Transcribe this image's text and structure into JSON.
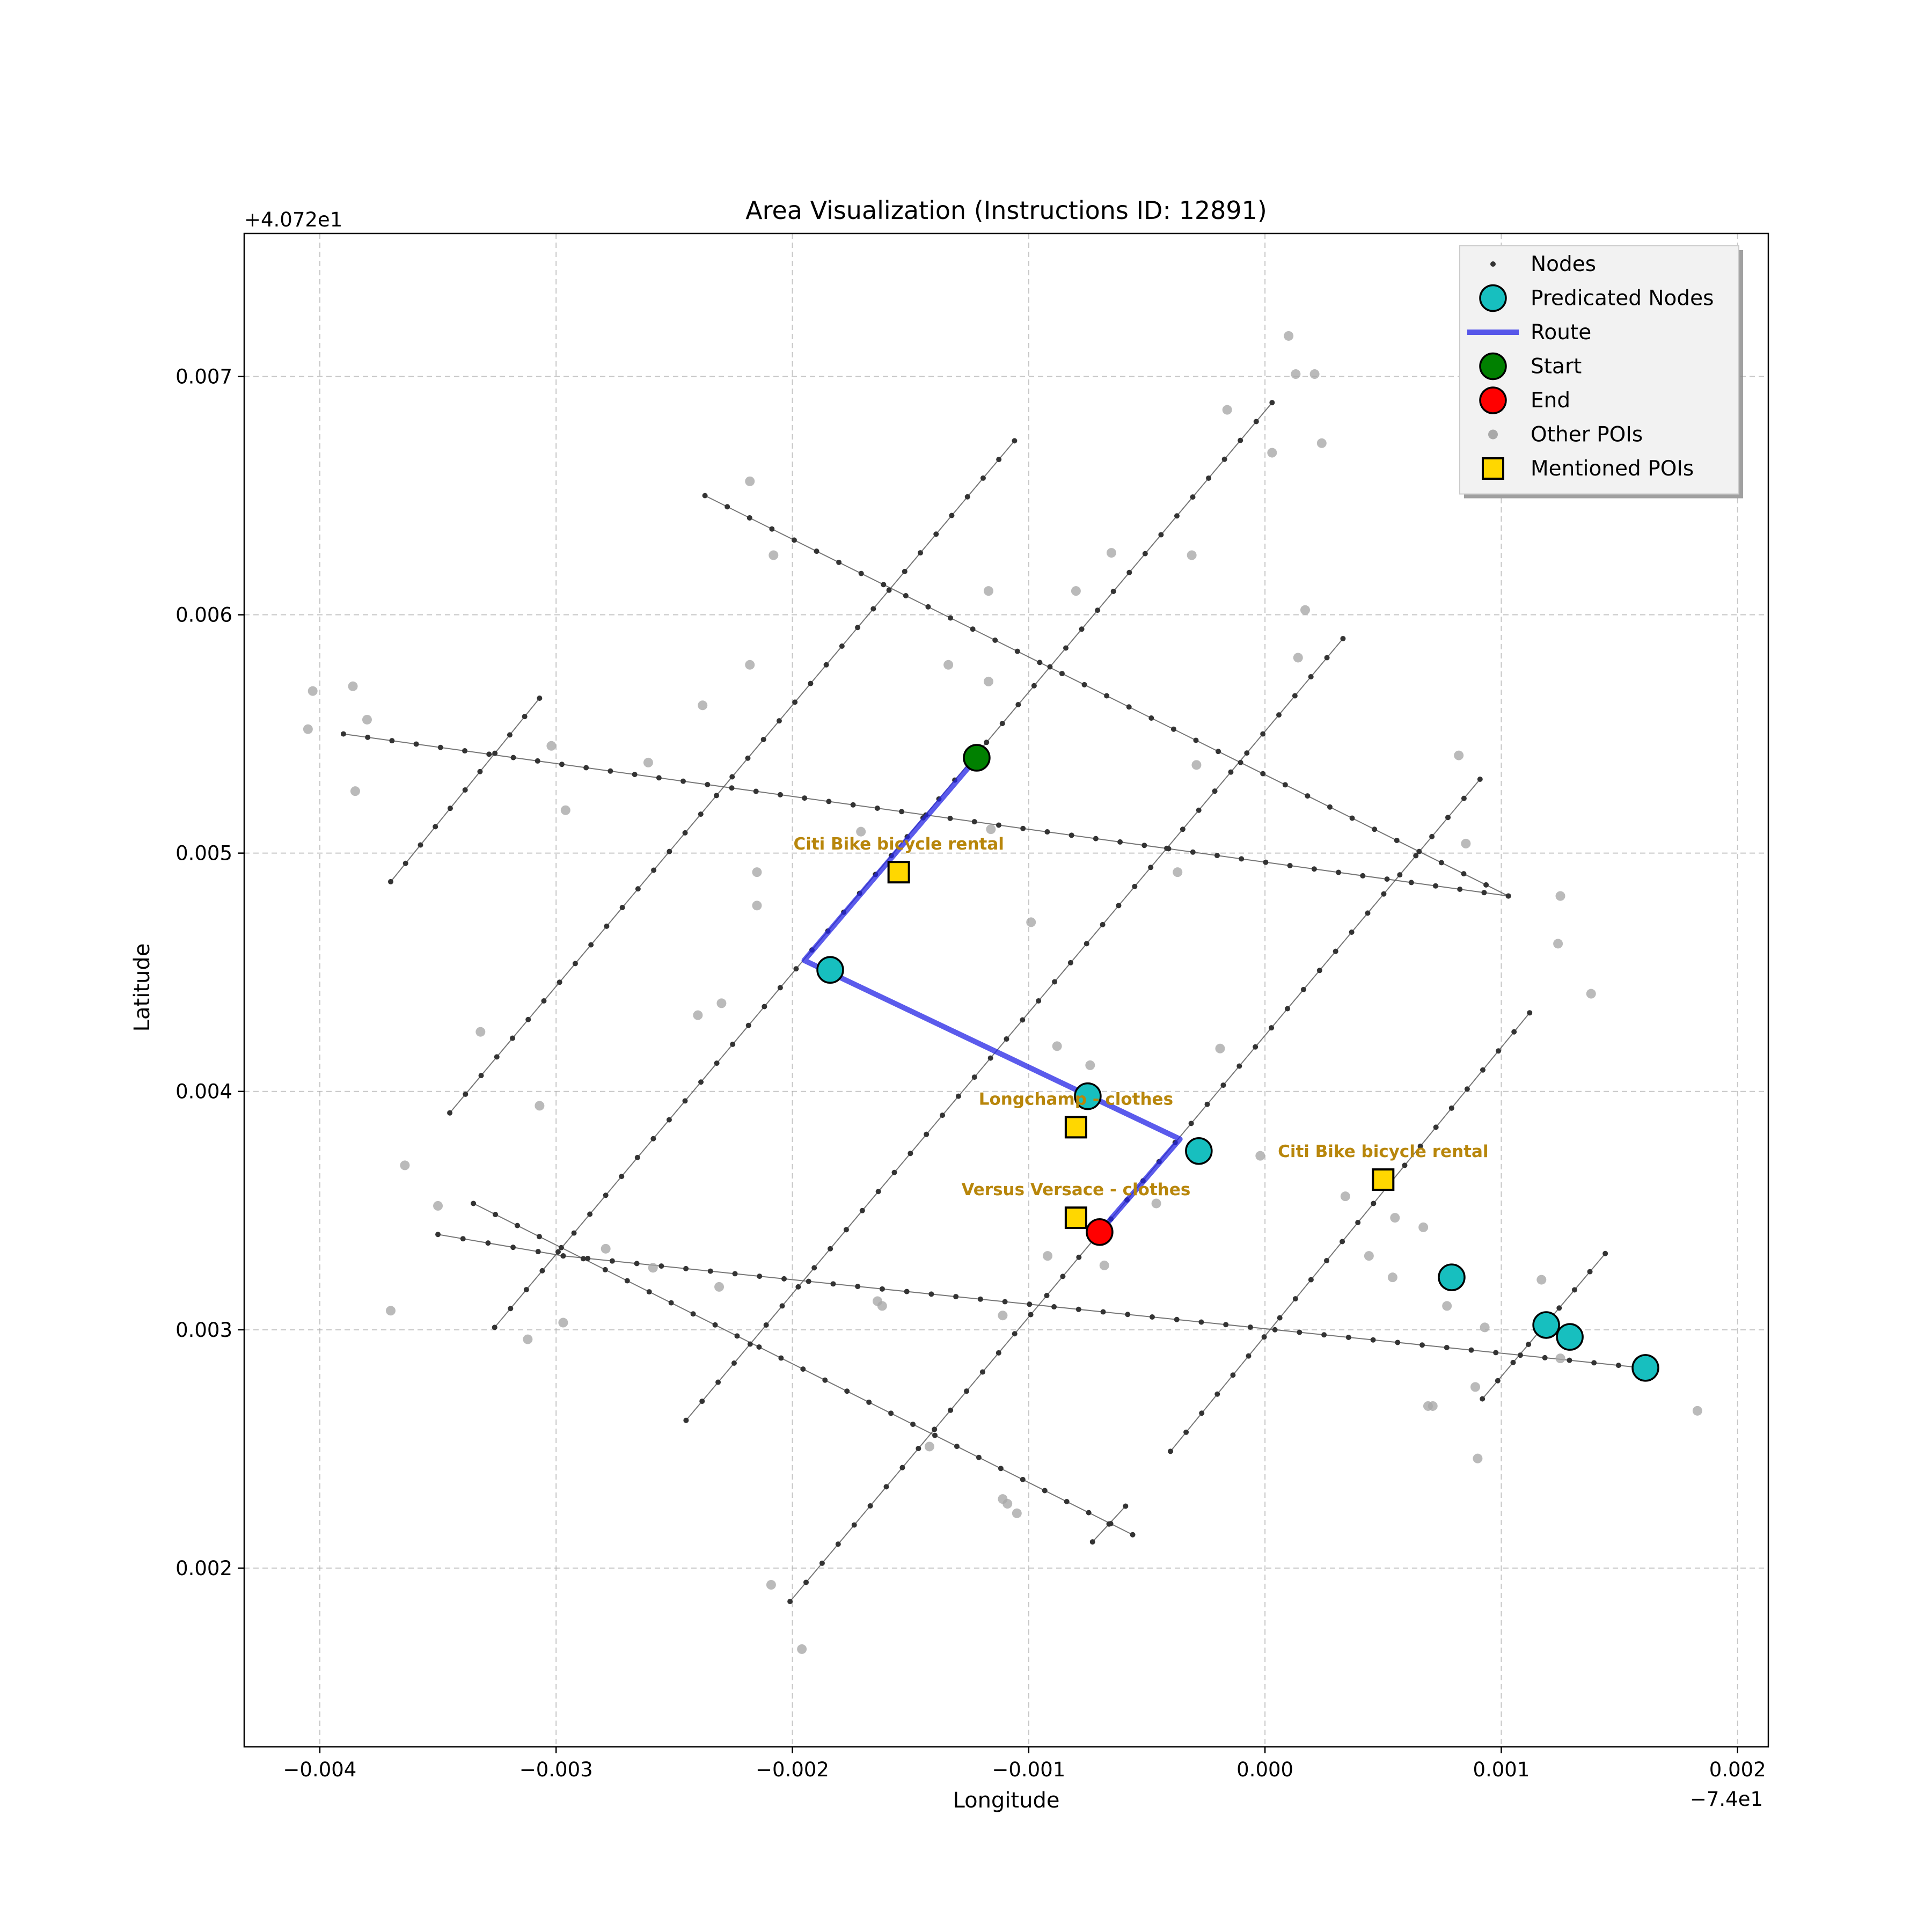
{
  "chart_data": {
    "type": "scatter",
    "title": "Area Visualization (Instructions ID: 12891)",
    "xlabel": "Longitude",
    "ylabel": "Latitude",
    "x_offset_label": "−7.4e1",
    "y_offset_label": "+4.072e1",
    "xlim": [
      -0.00432,
      0.00213
    ],
    "ylim": [
      0.00125,
      0.0076
    ],
    "x_ticks": [
      -0.004,
      -0.003,
      -0.002,
      -0.001,
      0.0,
      0.001,
      0.002
    ],
    "x_tick_labels": [
      "−0.004",
      "−0.003",
      "−0.002",
      "−0.001",
      "0.000",
      "0.001",
      "0.002"
    ],
    "y_ticks": [
      0.002,
      0.003,
      0.004,
      0.005,
      0.006,
      0.007
    ],
    "y_tick_labels": [
      "0.002",
      "0.003",
      "0.004",
      "0.005",
      "0.006",
      "0.007"
    ],
    "grid": true,
    "legend_position": "top-right",
    "colors": {
      "nodes": "#333333",
      "predicated": "#17bfbf",
      "route": "#2424e6",
      "start": "#008000",
      "end": "#ff0000",
      "other_poi": "#a9a9a9",
      "mentioned_poi": "#ffd700",
      "poi_label": "#b8860b"
    },
    "legend": [
      {
        "key": "nodes",
        "label": "Nodes"
      },
      {
        "key": "predicated",
        "label": "Predicated Nodes"
      },
      {
        "key": "route",
        "label": "Route"
      },
      {
        "key": "start",
        "label": "Start"
      },
      {
        "key": "end",
        "label": "End"
      },
      {
        "key": "other_poi",
        "label": "Other POIs"
      },
      {
        "key": "mentioned_poi",
        "label": "Mentioned POIs"
      }
    ],
    "streets": [
      [
        [
          -0.0037,
          0.00488
        ],
        [
          -0.00307,
          0.00565
        ]
      ],
      [
        [
          -0.00345,
          0.00391
        ],
        [
          -0.00106,
          0.00673
        ]
      ],
      [
        [
          -0.00326,
          0.00301
        ],
        [
          3e-05,
          0.00689
        ]
      ],
      [
        [
          -0.00245,
          0.00262
        ],
        [
          0.00033,
          0.0059
        ]
      ],
      [
        [
          -0.00201,
          0.00186
        ],
        [
          0.00091,
          0.00531
        ]
      ],
      [
        [
          -0.00073,
          0.00211
        ],
        [
          -0.00059,
          0.00226
        ]
      ],
      [
        [
          -0.0004,
          0.00249
        ],
        [
          0.00112,
          0.00433
        ]
      ],
      [
        [
          0.00092,
          0.00271
        ],
        [
          0.00144,
          0.00332
        ]
      ],
      [
        [
          -0.0039,
          0.0055
        ],
        [
          0.00103,
          0.00482
        ]
      ],
      [
        [
          -0.00237,
          0.0065
        ],
        [
          0.00103,
          0.00482
        ]
      ],
      [
        [
          -0.00335,
          0.00353
        ],
        [
          -0.00056,
          0.00214
        ]
      ],
      [
        [
          -0.0035,
          0.0034
        ],
        [
          -0.00297,
          0.00331
        ]
      ],
      [
        [
          -0.00297,
          0.00331
        ],
        [
          0.0016,
          0.00284
        ]
      ]
    ],
    "route": [
      [
        -0.00122,
        0.0054
      ],
      [
        -0.00195,
        0.00455
      ],
      [
        -0.00036,
        0.0038
      ],
      [
        -0.0007,
        0.00341
      ]
    ],
    "start": [
      -0.00122,
      0.0054
    ],
    "end": [
      -0.0007,
      0.00341
    ],
    "predicated_nodes": [
      [
        -0.00184,
        0.00451
      ],
      [
        -0.00075,
        0.00398
      ],
      [
        -0.00028,
        0.00375
      ],
      [
        0.00079,
        0.00322
      ],
      [
        0.00119,
        0.00302
      ],
      [
        0.00129,
        0.00297
      ],
      [
        0.00161,
        0.00284
      ]
    ],
    "mentioned_pois": [
      {
        "x": -0.00155,
        "y": 0.00492,
        "label": "Citi Bike bicycle rental"
      },
      {
        "x": -0.0008,
        "y": 0.00385,
        "label": "Longchamp - clothes"
      },
      {
        "x": 0.0005,
        "y": 0.00363,
        "label": "Citi Bike bicycle rental"
      },
      {
        "x": -0.0008,
        "y": 0.00347,
        "label": "Versus Versace - clothes"
      }
    ],
    "other_pois": [
      [
        -0.00403,
        0.00568
      ],
      [
        -0.00405,
        0.00552
      ],
      [
        -0.00386,
        0.0057
      ],
      [
        -0.0038,
        0.00556
      ],
      [
        -0.00385,
        0.00526
      ],
      [
        -0.00302,
        0.00545
      ],
      [
        -0.00296,
        0.00518
      ],
      [
        -0.00261,
        0.00538
      ],
      [
        -0.00238,
        0.00562
      ],
      [
        -0.00218,
        0.00579
      ],
      [
        -0.00208,
        0.00625
      ],
      [
        -0.00218,
        0.00656
      ],
      [
        -0.00215,
        0.00492
      ],
      [
        -0.00215,
        0.00478
      ],
      [
        -0.00171,
        0.00509
      ],
      [
        -0.00134,
        0.00579
      ],
      [
        -0.00117,
        0.00572
      ],
      [
        -0.00116,
        0.0051
      ],
      [
        -0.00117,
        0.0061
      ],
      [
        -0.0008,
        0.0061
      ],
      [
        -0.00065,
        0.00626
      ],
      [
        -0.00031,
        0.00625
      ],
      [
        -0.00029,
        0.00537
      ],
      [
        -0.00037,
        0.00492
      ],
      [
        -0.00099,
        0.00471
      ],
      [
        -0.00088,
        0.00419
      ],
      [
        -0.00074,
        0.00411
      ],
      [
        -0.00019,
        0.00418
      ],
      [
        -0.00016,
        0.00686
      ],
      [
        0.0001,
        0.00717
      ],
      [
        0.00013,
        0.00701
      ],
      [
        0.00021,
        0.00701
      ],
      [
        3e-05,
        0.00668
      ],
      [
        0.00024,
        0.00672
      ],
      [
        0.00017,
        0.00602
      ],
      [
        0.00014,
        0.00582
      ],
      [
        0.00082,
        0.00541
      ],
      [
        0.00085,
        0.00504
      ],
      [
        0.00125,
        0.00482
      ],
      [
        0.00124,
        0.00462
      ],
      [
        0.00138,
        0.00441
      ],
      [
        -0.00332,
        0.00425
      ],
      [
        -0.00307,
        0.00394
      ],
      [
        -0.00364,
        0.00369
      ],
      [
        -0.0035,
        0.00352
      ],
      [
        -0.0037,
        0.00308
      ],
      [
        -0.00279,
        0.00334
      ],
      [
        -0.00259,
        0.00326
      ],
      [
        -0.00231,
        0.00318
      ],
      [
        -0.00297,
        0.00303
      ],
      [
        -0.00312,
        0.00296
      ],
      [
        -0.0024,
        0.00432
      ],
      [
        -0.0023,
        0.00437
      ],
      [
        -0.00164,
        0.00312
      ],
      [
        -0.00162,
        0.0031
      ],
      [
        -0.00111,
        0.00306
      ],
      [
        -0.00092,
        0.00331
      ],
      [
        -0.00068,
        0.00327
      ],
      [
        -0.00046,
        0.00353
      ],
      [
        -0.00111,
        0.00229
      ],
      [
        -0.00109,
        0.00227
      ],
      [
        -0.00105,
        0.00223
      ],
      [
        -0.00142,
        0.00251
      ],
      [
        -0.00209,
        0.00193
      ],
      [
        -0.00196,
        0.00166
      ],
      [
        0.00034,
        0.00356
      ],
      [
        0.00044,
        0.00331
      ],
      [
        0.00055,
        0.00347
      ],
      [
        0.00054,
        0.00322
      ],
      [
        0.00067,
        0.00343
      ],
      [
        0.00077,
        0.0031
      ],
      [
        0.00093,
        0.00301
      ],
      [
        0.00071,
        0.00268
      ],
      [
        0.00069,
        0.00268
      ],
      [
        0.00089,
        0.00276
      ],
      [
        0.0009,
        0.00246
      ],
      [
        0.00117,
        0.00321
      ],
      [
        0.00125,
        0.00288
      ],
      [
        0.00183,
        0.00266
      ],
      [
        -2e-05,
        0.00373
      ]
    ]
  }
}
